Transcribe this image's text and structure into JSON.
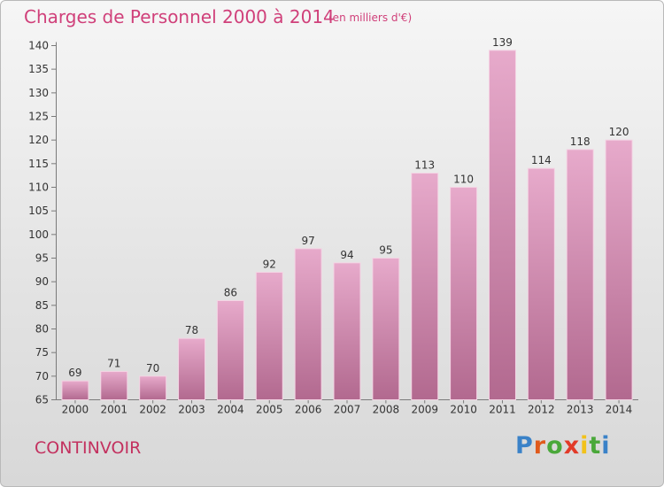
{
  "title": "Charges de Personnel 2000 à 2014",
  "subtitle": "(en milliers d'€)",
  "town": "CONTINVOIR",
  "logo": {
    "letters": [
      "P",
      "r",
      "o",
      "x",
      "i",
      "t",
      "i"
    ],
    "colors": [
      "#3a82c8",
      "#e05a1c",
      "#4aa83a",
      "#e23a28",
      "#f2c21a",
      "#4aa83a",
      "#3a82c8"
    ]
  },
  "colors": {
    "bar_top": "#e7aacb",
    "bar_bottom": "#b2698f",
    "bar_edge": "#f4d4e4",
    "text": "#333333",
    "title": "#d0407a"
  },
  "chart_data": {
    "type": "bar",
    "categories": [
      "2000",
      "2001",
      "2002",
      "2003",
      "2004",
      "2005",
      "2006",
      "2007",
      "2008",
      "2009",
      "2010",
      "2011",
      "2012",
      "2013",
      "2014"
    ],
    "values": [
      69,
      71,
      70,
      78,
      86,
      92,
      97,
      94,
      95,
      113,
      110,
      139,
      114,
      118,
      120
    ],
    "ylim": [
      65,
      140
    ],
    "yticks": [
      65,
      70,
      75,
      80,
      85,
      90,
      95,
      100,
      105,
      110,
      115,
      120,
      125,
      130,
      135,
      140
    ],
    "grid": false,
    "data_labels": true
  }
}
